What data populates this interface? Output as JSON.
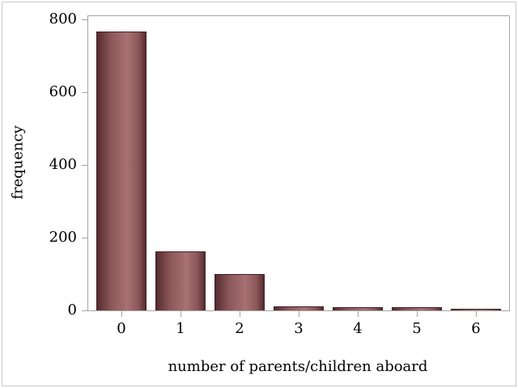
{
  "chart_data": {
    "type": "bar",
    "title": "",
    "categories": [
      "0",
      "1",
      "2",
      "3",
      "4",
      "5",
      "6"
    ],
    "values": [
      765,
      160,
      98,
      8,
      6,
      6,
      2
    ],
    "xlabel": "number of parents/children aboard",
    "ylabel": "frequency",
    "ylim": [
      0,
      800
    ],
    "yticks": [
      0,
      200,
      400,
      600,
      800
    ],
    "grid": false,
    "legend": "none",
    "colors": {
      "bar_highlight": "#a87173",
      "bar_mid": "#8a5658",
      "bar_edge_dark": "#552b2f",
      "bar_border": "#3f2126",
      "axis": "#a6a6a6",
      "figure_border": "#c9c9c9",
      "text": "#000000",
      "background": "#ffffff"
    }
  }
}
